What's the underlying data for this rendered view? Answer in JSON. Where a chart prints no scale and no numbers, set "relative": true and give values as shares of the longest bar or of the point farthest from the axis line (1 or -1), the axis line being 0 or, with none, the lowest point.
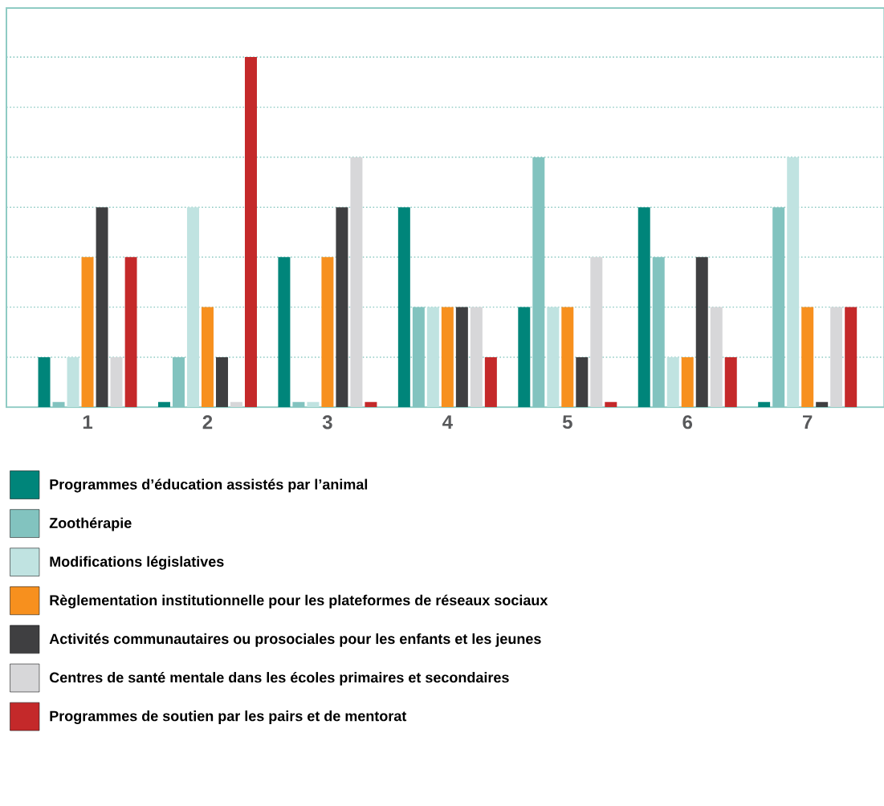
{
  "chart_data": {
    "type": "bar",
    "relative": true,
    "legend": "bottom",
    "ref_lines": [
      {
        "axis": "y",
        "value": 0.143,
        "color": "#8fcbc4",
        "line_style": "dotted"
      },
      {
        "axis": "y",
        "value": 0.286,
        "color": "#8fcbc4",
        "line_style": "dotted"
      },
      {
        "axis": "y",
        "value": 0.429,
        "color": "#8fcbc4",
        "line_style": "dotted"
      },
      {
        "axis": "y",
        "value": 0.571,
        "color": "#8fcbc4",
        "line_style": "dotted"
      },
      {
        "axis": "y",
        "value": 0.714,
        "color": "#8fcbc4",
        "line_style": "dotted"
      },
      {
        "axis": "y",
        "value": 0.857,
        "color": "#8fcbc4",
        "line_style": "dotted"
      },
      {
        "axis": "y",
        "value": 1,
        "color": "#8fcbc4",
        "line_style": "dotted"
      }
    ],
    "categories": [
      "1",
      "2",
      "3",
      "4",
      "5",
      "6",
      "7"
    ],
    "series": [
      {
        "name": "Programmes d’éducation assistés par l’animal",
        "color": "#00857a",
        "values": [
          0.143,
          0.015,
          0.429,
          0.571,
          0.286,
          0.571,
          0.015
        ]
      },
      {
        "name": "Zoothérapie",
        "color": "#82c3bf",
        "values": [
          0.015,
          0.143,
          0.015,
          0.286,
          0.714,
          0.429,
          0.571
        ]
      },
      {
        "name": "Modifications législatives",
        "color": "#c0e3e1",
        "values": [
          0.143,
          0.571,
          0.015,
          0.286,
          0.286,
          0.143,
          0.714
        ]
      },
      {
        "name": "Règlementation institutionnelle pour les plateformes de réseaux sociaux",
        "color": "#f7901e",
        "values": [
          0.429,
          0.286,
          0.429,
          0.286,
          0.286,
          0.143,
          0.286
        ]
      },
      {
        "name": "Activités communautaires ou prosociales pour les enfants et les jeunes",
        "color": "#3f3f41",
        "values": [
          0.571,
          0.143,
          0.571,
          0.286,
          0.143,
          0.429,
          0.015
        ]
      },
      {
        "name": "Centres de santé mentale dans les écoles primaires et secondaires",
        "color": "#d7d7d9",
        "values": [
          0.143,
          0.015,
          0.714,
          0.286,
          0.429,
          0.286,
          0.286
        ]
      },
      {
        "name": "Programmes de soutien par les pairs et de mentorat",
        "color": "#c4292a",
        "values": [
          0.429,
          1,
          0.015,
          0.143,
          0.015,
          0.143,
          0.286
        ]
      }
    ]
  }
}
